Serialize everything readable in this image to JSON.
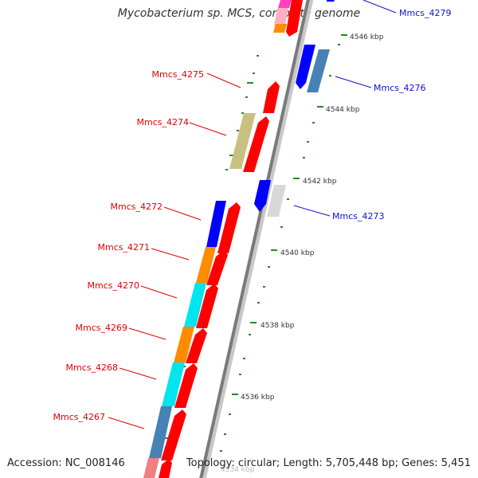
{
  "title": "Mycobacterium sp. MCS, complete genome",
  "footer": {
    "accession": "Accession: NC_008146",
    "topology": "Topology: circular; Length: 5,705,448 bp; Genes: 5,451"
  },
  "scale_labels": [
    "4546 kbp",
    "4544 kbp",
    "4542 kbp",
    "4540 kbp",
    "4538 kbp",
    "4536 kbp",
    "4534 kbp"
  ],
  "gene_labels": {
    "reverse": [
      "Mmcs_4279",
      "Mmcs_4276",
      "Mmcs_4273"
    ],
    "forward": [
      "Mmcs_4275",
      "Mmcs_4274",
      "Mmcs_4272",
      "Mmcs_4271",
      "Mmcs_4270",
      "Mmcs_4269",
      "Mmcs_4268",
      "Mmcs_4267"
    ]
  },
  "colors": {
    "forward_label": "#e00000",
    "reverse_label": "#1010d0",
    "forward_arrow": "#ff0000",
    "reverse_arrow": "#0000ff",
    "backbone": "#808080",
    "scale_tick": "#228b22"
  }
}
